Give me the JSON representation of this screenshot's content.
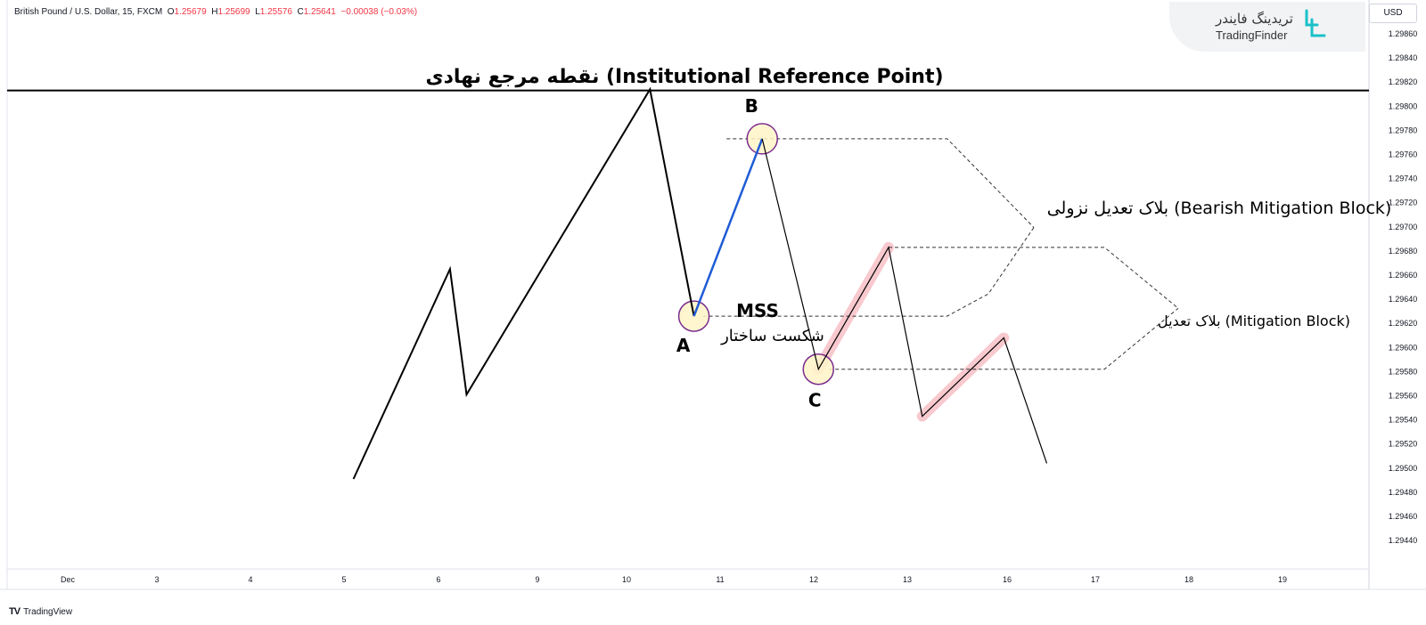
{
  "header": {
    "symbol": "British Pound / U.S. Dollar, 15, FXCM",
    "o_label": "O",
    "o_value": "1.25679",
    "h_label": "H",
    "h_value": "1.25699",
    "l_label": "L",
    "l_value": "1.25576",
    "c_label": "C",
    "c_value": "1.25641",
    "change": "−0.00038 (−0.03%)"
  },
  "watermark": {
    "fa": "تریدینگ فایندر",
    "en": "TradingFinder"
  },
  "currency_label": "USD",
  "footer": {
    "brand": "TradingView",
    "logo": "TV"
  },
  "colors": {
    "line": "#000000",
    "impulse": "#1e5bd6",
    "circle_fill": "#fff5c8",
    "circle_stroke": "#7b2d8e",
    "highlight": "#f4a6ae",
    "header_red": "#f23645"
  },
  "chart_data": {
    "type": "line",
    "y_ticks": [
      "1.29860",
      "1.29840",
      "1.29820",
      "1.29800",
      "1.29780",
      "1.29760",
      "1.29740",
      "1.29720",
      "1.29700",
      "1.29680",
      "1.29660",
      "1.29640",
      "1.29620",
      "1.29600",
      "1.29580",
      "1.29560",
      "1.29540",
      "1.29520",
      "1.29500",
      "1.29480",
      "1.29460",
      "1.29440"
    ],
    "x_ticks": [
      "Dec",
      "3",
      "4",
      "5",
      "6",
      "9",
      "10",
      "11",
      "12",
      "13",
      "16",
      "17",
      "18",
      "19"
    ],
    "ylim": [
      1.2943,
      1.2988
    ],
    "price_path": [
      {
        "day": 5.1,
        "price": 1.29491
      },
      {
        "day": 6.35,
        "price": 1.29665
      },
      {
        "day": 6.85,
        "price": 1.29561
      },
      {
        "day": 10.25,
        "price": 1.29814
      },
      {
        "day": 10.72,
        "price": 1.29626
      }
    ],
    "impulse_path": [
      {
        "day": 10.72,
        "price": 1.29626
      },
      {
        "day": 11.45,
        "price": 1.29773
      }
    ],
    "thin_path": [
      {
        "day": 11.45,
        "price": 1.29773
      },
      {
        "day": 12.05,
        "price": 1.29582
      },
      {
        "day": 12.8,
        "price": 1.29683
      },
      {
        "day": 13.45,
        "price": 1.29543
      },
      {
        "day": 15.9,
        "price": 1.29608
      },
      {
        "day": 16.45,
        "price": 1.29504
      }
    ],
    "highlights": [
      {
        "from": {
          "day": 12.05,
          "price": 1.29582
        },
        "to": {
          "day": 12.8,
          "price": 1.29683
        }
      },
      {
        "from": {
          "day": 13.45,
          "price": 1.29543
        },
        "to": {
          "day": 15.9,
          "price": 1.29608
        }
      }
    ],
    "reference_line": {
      "price": 1.29813,
      "label": "نقطه مرجع نهادی (Institutional Reference Point)"
    },
    "points": [
      {
        "label": "A",
        "day": 10.72,
        "price": 1.29626
      },
      {
        "label": "B",
        "day": 11.45,
        "price": 1.29773
      },
      {
        "label": "C",
        "day": 12.05,
        "price": 1.29582
      }
    ],
    "mss": {
      "label_en": "MSS",
      "label_fa": "شکست ساختار",
      "price": 1.29626
    },
    "bearish_block": {
      "top_price": 1.29773,
      "bottom_price": 1.29626,
      "label": "بلاک تعدیل نزولی (Bearish Mitigation Block)"
    },
    "mitigation_block": {
      "top_price": 1.29683,
      "bottom_price": 1.29582,
      "label": "بلاک تعدیل  (Mitigation Block)"
    }
  }
}
